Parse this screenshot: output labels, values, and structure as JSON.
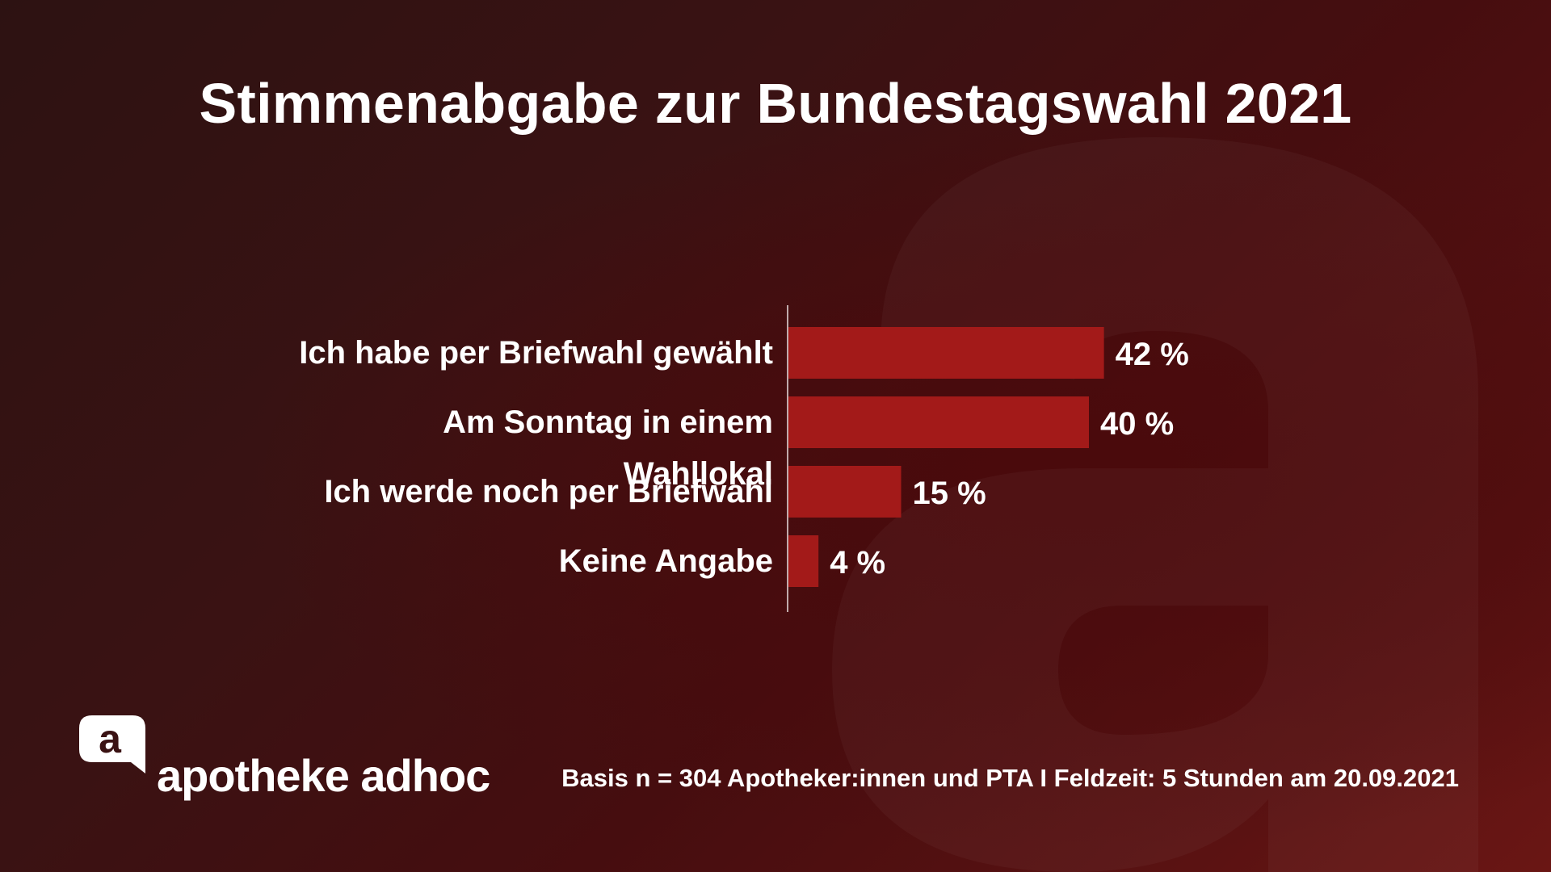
{
  "colors": {
    "bar": "#a31a19",
    "axis": "#e8e0e0",
    "text": "#ffffff",
    "background_dark": "#2d1212",
    "background_red": "#6a1614"
  },
  "header": {
    "title": "Stimmenabgabe zur Bundestagswahl 2021"
  },
  "footer": {
    "source": "Basis n = 304 Apotheker:innen und PTA I Feldzeit: 5 Stunden am 20.09.2021"
  },
  "logo": {
    "icon": "apotheke-adhoc-a-icon",
    "mark_letter": "a",
    "text": "apotheke adhoc"
  },
  "chart_data": {
    "type": "bar",
    "orientation": "horizontal",
    "title": "Stimmenabgabe zur Bundestagswahl 2021",
    "categories": [
      "Ich habe per Briefwahl gewählt",
      "Am Sonntag in einem Wahllokal",
      "Ich werde noch per Briefwahl",
      "Keine Angabe"
    ],
    "values": [
      42,
      40,
      15,
      4
    ],
    "value_labels": [
      "42 %",
      "40 %",
      "15 %",
      "4 %"
    ],
    "unit": "%",
    "xlim": [
      0,
      100
    ],
    "grid": false,
    "legend": "none"
  }
}
